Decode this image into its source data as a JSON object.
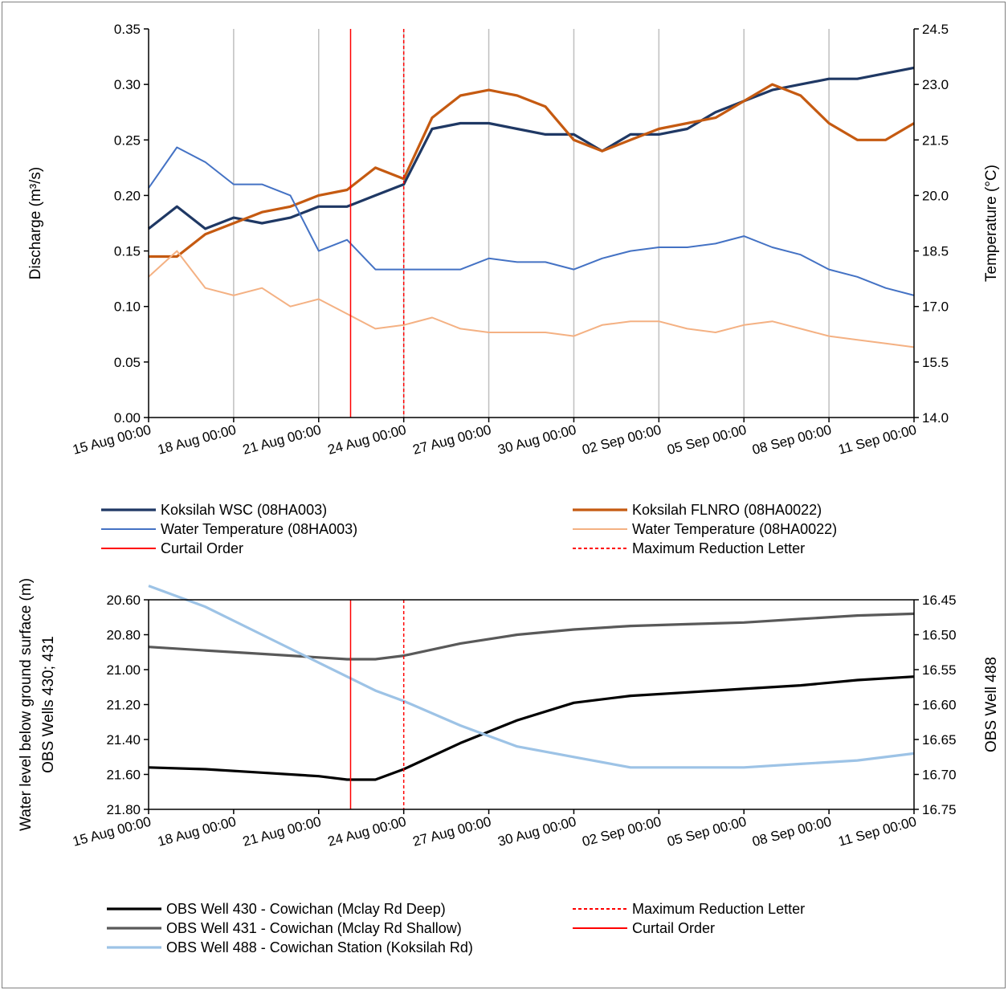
{
  "chart_data": [
    {
      "type": "line",
      "ylabel": "Discharge (m³/s)",
      "y2label": "Temperature (°C)",
      "xlabel": "",
      "x_tick_labels": [
        "15 Aug  00:00",
        "18 Aug  00:00",
        "21 Aug  00:00",
        "24 Aug  00:00",
        "27 Aug  00:00",
        "30 Aug  00:00",
        "02 Sep  00:00",
        "05 Sep  00:00",
        "08 Sep  00:00",
        "11 Sep  00:00"
      ],
      "xlim": [
        "2023-08-15 00:00",
        "2023-09-11 00:00"
      ],
      "ylim": [
        0,
        0.35
      ],
      "y_ticks": [
        "0.00",
        "0.05",
        "0.10",
        "0.15",
        "0.20",
        "0.25",
        "0.30",
        "0.35"
      ],
      "y2lim": [
        14.0,
        24.5
      ],
      "y2_ticks": [
        "14.0",
        "15.5",
        "17.0",
        "18.5",
        "20.0",
        "21.5",
        "23.0",
        "24.5"
      ],
      "grid": "vertical",
      "series": [
        {
          "name": "Koksilah WSC (08HA003)",
          "axis": "left",
          "color": "#1f3864",
          "width": 3.2,
          "x": [
            "2023-08-15",
            "2023-08-16",
            "2023-08-17",
            "2023-08-18",
            "2023-08-19",
            "2023-08-20",
            "2023-08-21",
            "2023-08-22",
            "2023-08-23",
            "2023-08-24",
            "2023-08-25",
            "2023-08-26",
            "2023-08-27",
            "2023-08-28",
            "2023-08-29",
            "2023-08-30",
            "2023-08-31",
            "2023-09-01",
            "2023-09-02",
            "2023-09-03",
            "2023-09-04",
            "2023-09-05",
            "2023-09-06",
            "2023-09-07",
            "2023-09-08",
            "2023-09-09",
            "2023-09-10",
            "2023-09-11"
          ],
          "values": [
            0.17,
            0.19,
            0.17,
            0.18,
            0.175,
            0.18,
            0.19,
            0.19,
            0.2,
            0.21,
            0.26,
            0.265,
            0.265,
            0.26,
            0.255,
            0.255,
            0.24,
            0.255,
            0.255,
            0.26,
            0.275,
            0.285,
            0.295,
            0.3,
            0.305,
            0.305,
            0.31,
            0.315
          ]
        },
        {
          "name": "Koksilah FLNRO (08HA0022)",
          "axis": "left",
          "color": "#c55a11",
          "width": 3.2,
          "x": [
            "2023-08-15",
            "2023-08-16",
            "2023-08-17",
            "2023-08-18",
            "2023-08-19",
            "2023-08-20",
            "2023-08-21",
            "2023-08-22",
            "2023-08-23",
            "2023-08-24",
            "2023-08-25",
            "2023-08-26",
            "2023-08-27",
            "2023-08-28",
            "2023-08-29",
            "2023-08-30",
            "2023-08-31",
            "2023-09-01",
            "2023-09-02",
            "2023-09-03",
            "2023-09-04",
            "2023-09-05",
            "2023-09-06",
            "2023-09-07",
            "2023-09-08",
            "2023-09-09",
            "2023-09-10",
            "2023-09-11"
          ],
          "values": [
            0.145,
            0.145,
            0.165,
            0.175,
            0.185,
            0.19,
            0.2,
            0.205,
            0.225,
            0.215,
            0.27,
            0.29,
            0.295,
            0.29,
            0.28,
            0.25,
            0.24,
            0.25,
            0.26,
            0.265,
            0.27,
            0.285,
            0.3,
            0.29,
            0.265,
            0.25,
            0.25,
            0.265
          ]
        },
        {
          "name": "Water Temperature (08HA003)",
          "axis": "right",
          "color": "#4472c4",
          "width": 2,
          "x": [
            "2023-08-15",
            "2023-08-16",
            "2023-08-17",
            "2023-08-18",
            "2023-08-19",
            "2023-08-20",
            "2023-08-21",
            "2023-08-22",
            "2023-08-23",
            "2023-08-24",
            "2023-08-25",
            "2023-08-26",
            "2023-08-27",
            "2023-08-28",
            "2023-08-29",
            "2023-08-30",
            "2023-08-31",
            "2023-09-01",
            "2023-09-02",
            "2023-09-03",
            "2023-09-04",
            "2023-09-05",
            "2023-09-06",
            "2023-09-07",
            "2023-09-08",
            "2023-09-09",
            "2023-09-10",
            "2023-09-11"
          ],
          "values": [
            20.2,
            21.3,
            20.9,
            20.3,
            20.3,
            20.0,
            18.5,
            18.8,
            18.0,
            18.0,
            18.0,
            18.0,
            18.3,
            18.2,
            18.2,
            18.0,
            18.3,
            18.5,
            18.6,
            18.6,
            18.7,
            18.9,
            18.6,
            18.4,
            18.0,
            17.8,
            17.5,
            17.3
          ]
        },
        {
          "name": "Water Temperature (08HA0022)",
          "axis": "right",
          "color": "#f4b183",
          "width": 2,
          "x": [
            "2023-08-15",
            "2023-08-16",
            "2023-08-17",
            "2023-08-18",
            "2023-08-19",
            "2023-08-20",
            "2023-08-21",
            "2023-08-22",
            "2023-08-23",
            "2023-08-24",
            "2023-08-25",
            "2023-08-26",
            "2023-08-27",
            "2023-08-28",
            "2023-08-29",
            "2023-08-30",
            "2023-08-31",
            "2023-09-01",
            "2023-09-02",
            "2023-09-03",
            "2023-09-04",
            "2023-09-05",
            "2023-09-06",
            "2023-09-07",
            "2023-09-08",
            "2023-09-09",
            "2023-09-10",
            "2023-09-11"
          ],
          "values": [
            17.8,
            18.5,
            17.5,
            17.3,
            17.5,
            17.0,
            17.2,
            16.8,
            16.4,
            16.5,
            16.7,
            16.4,
            16.3,
            16.3,
            16.3,
            16.2,
            16.5,
            16.6,
            16.6,
            16.4,
            16.3,
            16.5,
            16.6,
            16.4,
            16.2,
            16.1,
            16.0,
            15.9
          ]
        }
      ],
      "vlines": [
        {
          "name": "Curtail Order",
          "x": "2023-08-22 03:00",
          "style": "solid",
          "color": "#ff0000"
        },
        {
          "name": "Maximum Reduction Letter",
          "x": "2023-08-24 00:00",
          "style": "dashed",
          "color": "#ff0000"
        }
      ],
      "legend": {
        "placement": "bottom",
        "left": [
          {
            "label": "Koksilah WSC (08HA003)",
            "color": "#1f3864",
            "style": "solid",
            "width": 3.2
          },
          {
            "label": "Water Temperature (08HA003)",
            "color": "#4472c4",
            "style": "solid",
            "width": 2
          },
          {
            "label": "Curtail Order",
            "color": "#ff0000",
            "style": "solid",
            "width": 2
          }
        ],
        "right": [
          {
            "label": "Koksilah FLNRO (08HA0022)",
            "color": "#c55a11",
            "style": "solid",
            "width": 3.2
          },
          {
            "label": "Water Temperature (08HA0022)",
            "color": "#f4b183",
            "style": "solid",
            "width": 2
          },
          {
            "label": "Maximum Reduction Letter",
            "color": "#ff0000",
            "style": "dashed",
            "width": 2
          }
        ]
      }
    },
    {
      "type": "line",
      "ylabel": "Water level below ground surface (m)\nOBS Wells 430; 431",
      "y2label": "OBS Well 488",
      "xlabel": "",
      "x_tick_labels": [
        "15 Aug 00:00",
        "18 Aug 00:00",
        "21 Aug 00:00",
        "24 Aug 00:00",
        "27 Aug 00:00",
        "30 Aug 00:00",
        "02 Sep 00:00",
        "05 Sep 00:00",
        "08 Sep 00:00",
        "11 Sep 00:00"
      ],
      "xlim": [
        "2023-08-15 00:00",
        "2023-09-11 00:00"
      ],
      "ylim": [
        20.6,
        21.8
      ],
      "y_inverted": true,
      "y_ticks": [
        "20.60",
        "20.80",
        "21.00",
        "21.20",
        "21.40",
        "21.60",
        "21.80"
      ],
      "y2lim": [
        16.45,
        16.75
      ],
      "y2_ticks": [
        "16.45",
        "16.50",
        "16.55",
        "16.60",
        "16.65",
        "16.70",
        "16.75"
      ],
      "grid": "none",
      "series": [
        {
          "name": "OBS Well 430 - Cowichan (Mclay Rd Deep)",
          "axis": "left",
          "color": "#000000",
          "width": 3.2,
          "x": [
            "2023-08-15",
            "2023-08-17",
            "2023-08-19",
            "2023-08-21",
            "2023-08-22",
            "2023-08-23",
            "2023-08-24",
            "2023-08-26",
            "2023-08-28",
            "2023-08-30",
            "2023-09-01",
            "2023-09-03",
            "2023-09-05",
            "2023-09-07",
            "2023-09-09",
            "2023-09-11"
          ],
          "values": [
            21.56,
            21.57,
            21.59,
            21.61,
            21.63,
            21.63,
            21.57,
            21.42,
            21.29,
            21.19,
            21.15,
            21.13,
            21.11,
            21.09,
            21.06,
            21.04
          ]
        },
        {
          "name": "OBS Well 431 - Cowichan (Mclay Rd Shallow)",
          "axis": "left",
          "color": "#595959",
          "width": 3.2,
          "x": [
            "2023-08-15",
            "2023-08-17",
            "2023-08-19",
            "2023-08-21",
            "2023-08-22",
            "2023-08-23",
            "2023-08-24",
            "2023-08-26",
            "2023-08-28",
            "2023-08-30",
            "2023-09-01",
            "2023-09-03",
            "2023-09-05",
            "2023-09-07",
            "2023-09-09",
            "2023-09-11"
          ],
          "values": [
            20.87,
            20.89,
            20.91,
            20.93,
            20.94,
            20.94,
            20.92,
            20.85,
            20.8,
            20.77,
            20.75,
            20.74,
            20.73,
            20.71,
            20.69,
            20.68
          ]
        },
        {
          "name": "OBS Well 488 - Cowichan Station (Koksilah Rd)",
          "axis": "right",
          "color": "#9dc3e6",
          "width": 3.2,
          "x": [
            "2023-08-15",
            "2023-08-17",
            "2023-08-19",
            "2023-08-21",
            "2023-08-22",
            "2023-08-23",
            "2023-08-24",
            "2023-08-26",
            "2023-08-28",
            "2023-08-30",
            "2023-09-01",
            "2023-09-03",
            "2023-09-05",
            "2023-09-07",
            "2023-09-09",
            "2023-09-11"
          ],
          "values": [
            16.43,
            16.46,
            16.5,
            16.54,
            16.56,
            16.58,
            16.595,
            16.63,
            16.66,
            16.675,
            16.69,
            16.69,
            16.69,
            16.685,
            16.68,
            16.67
          ]
        }
      ],
      "vlines": [
        {
          "name": "Curtail Order",
          "x": "2023-08-22 03:00",
          "style": "solid",
          "color": "#ff0000"
        },
        {
          "name": "Maximum Reduction Letter",
          "x": "2023-08-24 00:00",
          "style": "dashed",
          "color": "#ff0000"
        }
      ],
      "legend": {
        "placement": "bottom",
        "left": [
          {
            "label": "OBS Well 430 - Cowichan (Mclay Rd Deep)",
            "color": "#000000",
            "style": "solid",
            "width": 3.2
          },
          {
            "label": "OBS Well 431 - Cowichan (Mclay Rd Shallow)",
            "color": "#595959",
            "style": "solid",
            "width": 3.2
          },
          {
            "label": "OBS Well 488 - Cowichan Station (Koksilah Rd)",
            "color": "#9dc3e6",
            "style": "solid",
            "width": 3.2
          }
        ],
        "right": [
          {
            "label": "Maximum Reduction Letter",
            "color": "#ff0000",
            "style": "dashed",
            "width": 2
          },
          {
            "label": "Curtail Order",
            "color": "#ff0000",
            "style": "solid",
            "width": 2
          }
        ]
      }
    }
  ]
}
